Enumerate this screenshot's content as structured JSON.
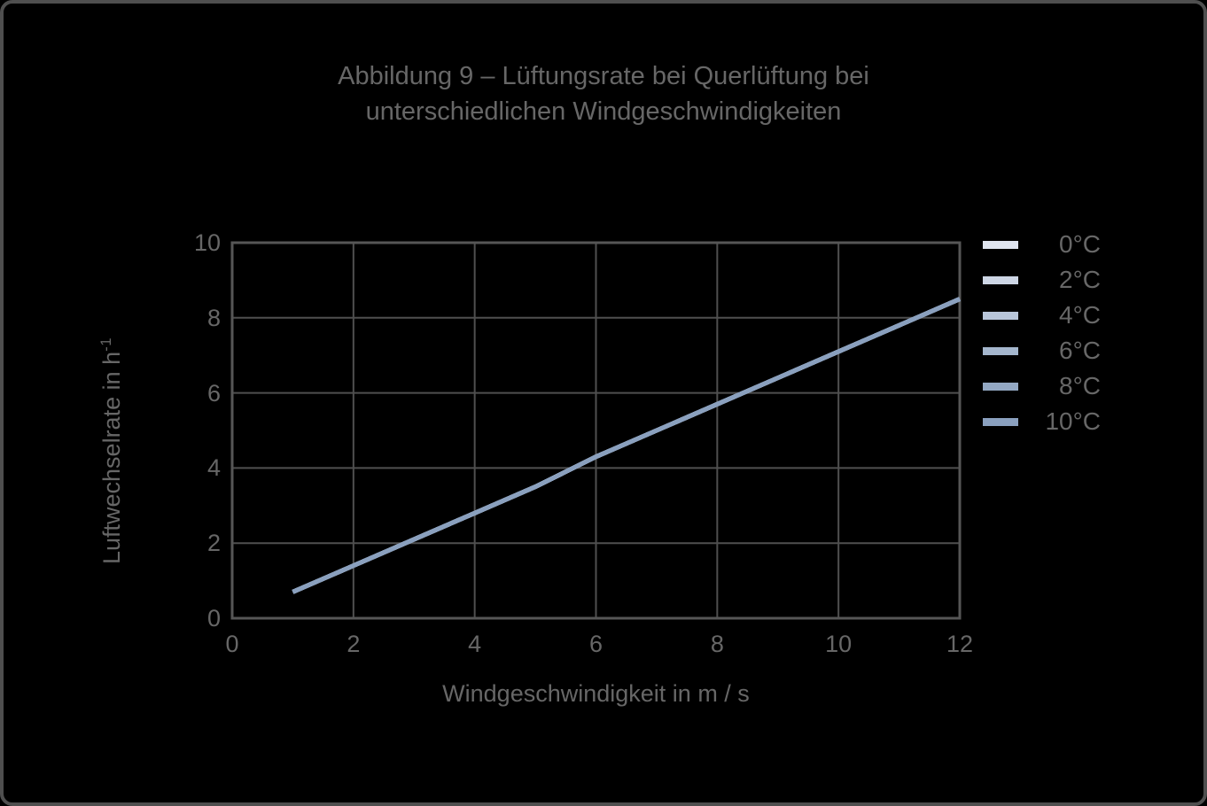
{
  "figure": {
    "background": "#000000",
    "frame_color": "#4f4f4f"
  },
  "colors": {
    "grid": "#4f4f4f",
    "axis_border": "#565656",
    "text": "#676767"
  },
  "chart_data": {
    "type": "line",
    "title": "Abbildung 9 – Lüftungsrate bei Querlüftung bei unterschiedlichen Windgeschwindigkeiten",
    "title_lines": [
      "Abbildung 9 – Lüftungsrate bei Querlüftung bei",
      "unterschiedlichen Windgeschwindigkeiten"
    ],
    "xlabel": "Windgeschwindigkeit in m / s",
    "ylabel": "Luftwechselrate in h⁻¹",
    "ylabel_base": "Luftwechselrate in h",
    "ylabel_exponent": "-1",
    "xlim": [
      0,
      12
    ],
    "ylim": [
      0,
      10
    ],
    "xticks": [
      0,
      2,
      4,
      6,
      8,
      10,
      12
    ],
    "yticks": [
      0,
      2,
      4,
      6,
      8,
      10
    ],
    "grid": true,
    "legend_position": "right-top",
    "x": [
      1,
      2,
      3,
      4,
      5,
      6,
      7,
      8,
      9,
      10,
      11,
      12
    ],
    "series": [
      {
        "name": "0°C",
        "color": "#e0e5ef",
        "values": [
          0.7,
          1.4,
          2.1,
          2.8,
          3.5,
          4.3,
          5.0,
          5.7,
          6.4,
          7.1,
          7.8,
          8.5
        ]
      },
      {
        "name": "2°C",
        "color": "#cdd6e5",
        "values": [
          0.7,
          1.4,
          2.1,
          2.8,
          3.5,
          4.3,
          5.0,
          5.7,
          6.4,
          7.1,
          7.8,
          8.5
        ]
      },
      {
        "name": "4°C",
        "color": "#b9c6da",
        "values": [
          0.7,
          1.4,
          2.1,
          2.8,
          3.5,
          4.3,
          5.0,
          5.7,
          6.4,
          7.1,
          7.8,
          8.5
        ]
      },
      {
        "name": "6°C",
        "color": "#a4b6cd",
        "values": [
          0.7,
          1.4,
          2.1,
          2.8,
          3.5,
          4.3,
          5.0,
          5.7,
          6.4,
          7.1,
          7.8,
          8.5
        ]
      },
      {
        "name": "8°C",
        "color": "#93a8c3",
        "values": [
          0.7,
          1.4,
          2.1,
          2.8,
          3.5,
          4.3,
          5.0,
          5.7,
          6.4,
          7.1,
          7.8,
          8.5
        ]
      },
      {
        "name": "10°C",
        "color": "#8aa0be",
        "values": [
          0.7,
          1.4,
          2.1,
          2.8,
          3.5,
          4.3,
          5.0,
          5.7,
          6.4,
          7.1,
          7.8,
          8.5
        ]
      }
    ]
  }
}
